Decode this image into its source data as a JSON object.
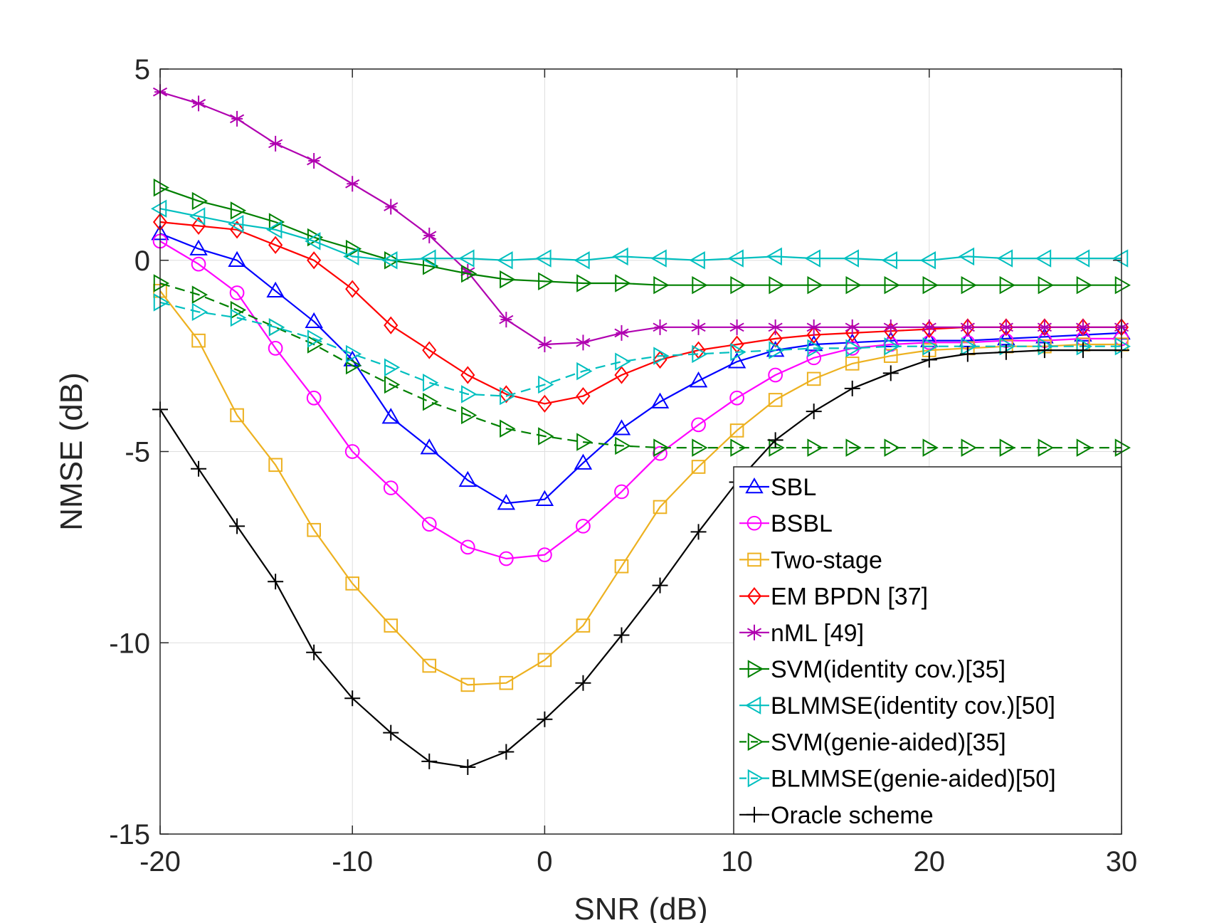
{
  "chart_data": {
    "type": "line",
    "title": "",
    "xlabel": "SNR (dB)",
    "ylabel": "NMSE (dB)",
    "xlim": [
      -20,
      30
    ],
    "ylim": [
      -15,
      5
    ],
    "xticks": [
      -20,
      -10,
      0,
      10,
      20,
      30
    ],
    "yticks": [
      5,
      0,
      -5,
      -10,
      -15
    ],
    "xtick_labels": [
      "-20",
      "-10",
      "0",
      "10",
      "20",
      "30"
    ],
    "ytick_labels": [
      "5",
      "0",
      "-5",
      "-10",
      "-15"
    ],
    "grid": true,
    "legend_position": "bottom-right",
    "x": [
      -20,
      -18,
      -16,
      -14,
      -12,
      -10,
      -8,
      -6,
      -4,
      -2,
      0,
      2,
      4,
      6,
      8,
      10,
      12,
      14,
      16,
      18,
      20,
      22,
      24,
      26,
      28,
      30
    ],
    "series": [
      {
        "name": "SBL",
        "color": "#0000ff",
        "marker": "triangle-up",
        "dash": "solid",
        "values": [
          0.7,
          0.3,
          0.0,
          -0.8,
          -1.6,
          -2.6,
          -4.1,
          -4.9,
          -5.75,
          -6.35,
          -6.25,
          -5.3,
          -4.4,
          -3.7,
          -3.15,
          -2.65,
          -2.35,
          -2.2,
          -2.15,
          -2.1,
          -2.1,
          -2.1,
          -2.05,
          -2.0,
          -1.95,
          -1.9
        ]
      },
      {
        "name": "BSBL",
        "color": "#ff00ff",
        "marker": "circle",
        "dash": "solid",
        "values": [
          0.5,
          -0.1,
          -0.85,
          -2.3,
          -3.6,
          -5.0,
          -5.95,
          -6.9,
          -7.5,
          -7.8,
          -7.7,
          -6.95,
          -6.05,
          -5.05,
          -4.3,
          -3.6,
          -3.0,
          -2.55,
          -2.3,
          -2.2,
          -2.15,
          -2.15,
          -2.1,
          -2.1,
          -2.05,
          -2.05
        ]
      },
      {
        "name": "Two-stage",
        "color": "#edb120",
        "marker": "square",
        "dash": "solid",
        "values": [
          -0.8,
          -2.1,
          -4.05,
          -5.35,
          -7.05,
          -8.45,
          -9.55,
          -10.6,
          -11.1,
          -11.05,
          -10.45,
          -9.55,
          -8.0,
          -6.45,
          -5.4,
          -4.45,
          -3.65,
          -3.1,
          -2.7,
          -2.5,
          -2.35,
          -2.3,
          -2.25,
          -2.25,
          -2.2,
          -2.2
        ]
      },
      {
        "name": "EM BPDN [37]",
        "color": "#ff0000",
        "marker": "diamond",
        "dash": "solid",
        "values": [
          1.0,
          0.9,
          0.8,
          0.4,
          0.0,
          -0.75,
          -1.7,
          -2.35,
          -3.0,
          -3.5,
          -3.75,
          -3.55,
          -3.0,
          -2.6,
          -2.35,
          -2.2,
          -2.05,
          -1.95,
          -1.9,
          -1.85,
          -1.8,
          -1.75,
          -1.75,
          -1.75,
          -1.75,
          -1.75
        ]
      },
      {
        "name": "nML [49]",
        "color": "#b000b0",
        "marker": "asterisk",
        "dash": "solid",
        "values": [
          4.4,
          4.1,
          3.7,
          3.05,
          2.6,
          2.0,
          1.4,
          0.65,
          -0.3,
          -1.55,
          -2.2,
          -2.15,
          -1.9,
          -1.75,
          -1.75,
          -1.75,
          -1.75,
          -1.75,
          -1.75,
          -1.75,
          -1.75,
          -1.75,
          -1.75,
          -1.75,
          -1.75,
          -1.75
        ]
      },
      {
        "name": "SVM(identity cov.)[35]",
        "color": "#008000",
        "marker": "triangle-right",
        "dash": "solid",
        "values": [
          1.9,
          1.55,
          1.3,
          1.0,
          0.6,
          0.3,
          0.0,
          -0.15,
          -0.35,
          -0.5,
          -0.55,
          -0.6,
          -0.6,
          -0.65,
          -0.65,
          -0.65,
          -0.65,
          -0.65,
          -0.65,
          -0.65,
          -0.65,
          -0.65,
          -0.65,
          -0.65,
          -0.65,
          -0.65
        ]
      },
      {
        "name": "BLMMSE(identity cov.)[50]",
        "color": "#00bfbf",
        "marker": "triangle-left",
        "dash": "solid",
        "values": [
          1.35,
          1.15,
          0.95,
          0.8,
          0.5,
          0.1,
          0.0,
          0.05,
          0.05,
          0.0,
          0.05,
          0.0,
          0.1,
          0.05,
          0.0,
          0.05,
          0.1,
          0.05,
          0.05,
          0.0,
          0.0,
          0.1,
          0.05,
          0.05,
          0.05,
          0.05
        ]
      },
      {
        "name": "SVM(genie-aided)[35]",
        "color": "#008000",
        "marker": "triangle-right",
        "dash": "dashed",
        "values": [
          -0.6,
          -0.9,
          -1.3,
          -1.75,
          -2.2,
          -2.75,
          -3.25,
          -3.7,
          -4.05,
          -4.4,
          -4.6,
          -4.75,
          -4.85,
          -4.9,
          -4.9,
          -4.9,
          -4.9,
          -4.9,
          -4.9,
          -4.9,
          -4.9,
          -4.9,
          -4.9,
          -4.9,
          -4.9,
          -4.9
        ]
      },
      {
        "name": "BLMMSE(genie-aided)[50]",
        "color": "#00bfbf",
        "marker": "triangle-right",
        "dash": "dashed",
        "values": [
          -1.1,
          -1.35,
          -1.5,
          -1.75,
          -2.05,
          -2.45,
          -2.8,
          -3.2,
          -3.5,
          -3.55,
          -3.25,
          -2.9,
          -2.65,
          -2.5,
          -2.45,
          -2.4,
          -2.35,
          -2.3,
          -2.3,
          -2.25,
          -2.25,
          -2.25,
          -2.25,
          -2.25,
          -2.25,
          -2.25
        ]
      },
      {
        "name": "Oracle scheme",
        "color": "#000000",
        "marker": "plus",
        "dash": "solid",
        "values": [
          -3.9,
          -5.45,
          -6.95,
          -8.4,
          -10.25,
          -11.45,
          -12.35,
          -13.1,
          -13.25,
          -12.85,
          -12.0,
          -11.05,
          -9.8,
          -8.5,
          -7.1,
          -5.8,
          -4.7,
          -3.95,
          -3.35,
          -2.95,
          -2.6,
          -2.45,
          -2.4,
          -2.35,
          -2.35,
          -2.35
        ]
      }
    ]
  }
}
